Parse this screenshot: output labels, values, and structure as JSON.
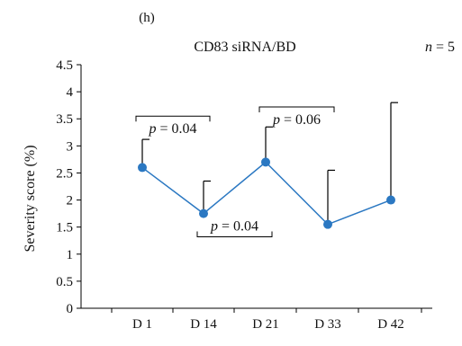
{
  "panel_label": "(h)",
  "n_prefix": "n",
  "n_value": "= 5",
  "colors": {
    "series": "#2b78c2",
    "error": "#000000",
    "axis": "#000000"
  },
  "chart_data": {
    "type": "line",
    "title": "CD83 siRNA/BD",
    "ylabel": "Severity score (%)",
    "xlabel": "",
    "categories": [
      "D 1",
      "D 14",
      "D 21",
      "D 33",
      "D 42"
    ],
    "ylim": [
      0,
      4.5
    ],
    "yticks": [
      "0",
      "0.5",
      "1",
      "1.5",
      "2",
      "2.5",
      "3",
      "3.5",
      "4",
      "4.5"
    ],
    "series": [
      {
        "values": [
          2.6,
          1.75,
          2.7,
          1.55,
          2.0
        ],
        "error_upper": [
          3.12,
          2.35,
          3.35,
          2.55,
          3.8
        ]
      }
    ],
    "annotations": [
      {
        "text": "p = 0.04",
        "from": "D 1",
        "to": "D 14",
        "position": "above",
        "y": 3.55
      },
      {
        "text": "p = 0.04",
        "from": "D 14",
        "to": "D 21",
        "position": "below",
        "y": 1.32
      },
      {
        "text": "p = 0.06",
        "from": "D 21",
        "to": "D 33",
        "position": "above",
        "y": 3.72
      }
    ]
  }
}
